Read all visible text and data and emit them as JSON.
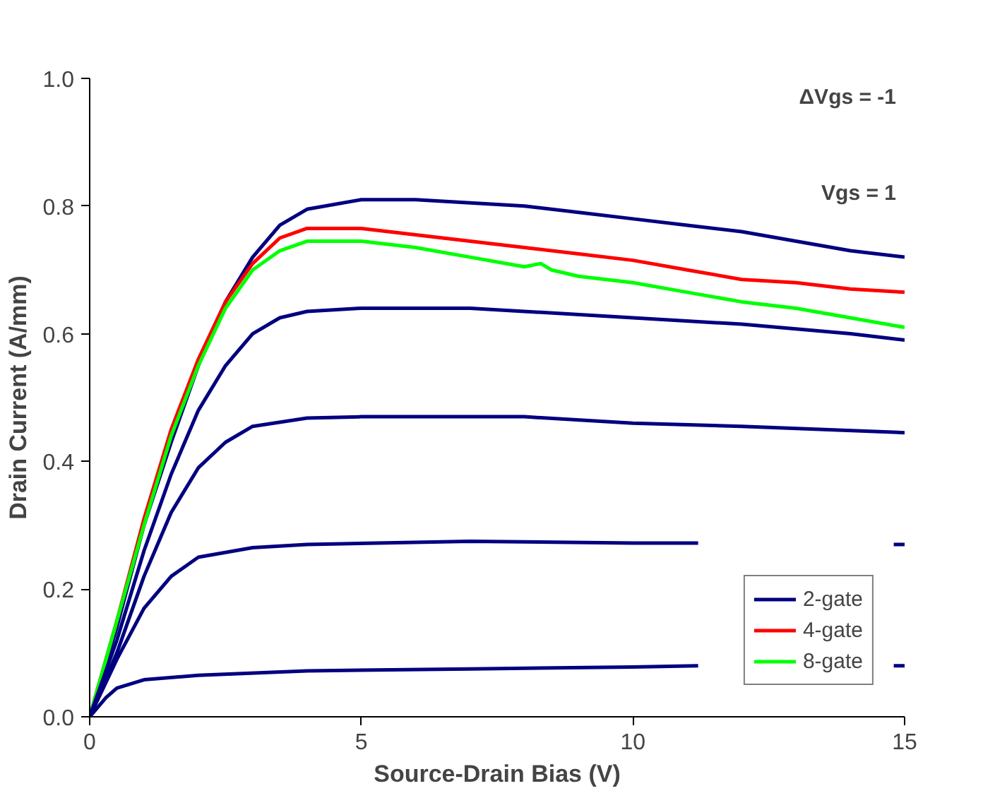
{
  "chart_data": {
    "type": "line",
    "xlabel": "Source-Drain Bias (V)",
    "ylabel": "Drain Current (A/mm)",
    "xlim": [
      0,
      15
    ],
    "ylim": [
      0,
      1.0
    ],
    "xticks": [
      0,
      5,
      10,
      15
    ],
    "yticks": [
      {
        "value": 0,
        "label": "0.0"
      },
      {
        "value": 0.2,
        "label": "0.2"
      },
      {
        "value": 0.4,
        "label": "0.4"
      },
      {
        "value": 0.6,
        "label": "0.6"
      },
      {
        "value": 0.8,
        "label": "0.8"
      },
      {
        "value": 1.0,
        "label": "1.0"
      }
    ],
    "grid": false,
    "legend": "bottom right",
    "marker": "none",
    "line_style": "solid",
    "annotations": [
      "ΔVgs = -1",
      "Vgs = 1"
    ],
    "series": [
      {
        "name": "2-gate",
        "color": "#000080",
        "x": [
          0,
          0.5,
          1,
          1.5,
          2,
          2.5,
          3,
          3.5,
          4,
          5,
          6,
          7,
          8,
          9,
          10,
          11,
          12,
          13,
          14,
          15
        ],
        "values": [
          0,
          0.14,
          0.3,
          0.43,
          0.55,
          0.65,
          0.72,
          0.77,
          0.795,
          0.81,
          0.81,
          0.805,
          0.8,
          0.79,
          0.78,
          0.77,
          0.76,
          0.745,
          0.73,
          0.72
        ]
      },
      {
        "name": "4-gate",
        "color": "#ff0000",
        "x": [
          0,
          0.5,
          1,
          1.5,
          2,
          2.5,
          3,
          3.5,
          4,
          5,
          6,
          7,
          8,
          9,
          10,
          11,
          12,
          13,
          14,
          15
        ],
        "values": [
          0,
          0.15,
          0.31,
          0.45,
          0.56,
          0.65,
          0.71,
          0.75,
          0.765,
          0.765,
          0.755,
          0.745,
          0.735,
          0.725,
          0.715,
          0.7,
          0.685,
          0.68,
          0.67,
          0.665
        ]
      },
      {
        "name": "8-gate",
        "color": "#00ff00",
        "x": [
          0,
          0.5,
          1,
          1.5,
          2,
          2.5,
          3,
          3.5,
          4,
          5,
          6,
          7,
          8,
          8.3,
          8.5,
          9,
          10,
          11,
          12,
          13,
          14,
          15
        ],
        "values": [
          0,
          0.15,
          0.3,
          0.44,
          0.55,
          0.64,
          0.7,
          0.73,
          0.745,
          0.745,
          0.735,
          0.72,
          0.705,
          0.71,
          0.7,
          0.69,
          0.68,
          0.665,
          0.65,
          0.64,
          0.625,
          0.61
        ]
      },
      {
        "color": "#000080",
        "x": [
          0,
          0.5,
          1,
          1.5,
          2,
          2.5,
          3,
          3.5,
          4,
          5,
          7,
          8,
          10,
          12,
          14,
          15
        ],
        "values": [
          0,
          0.12,
          0.26,
          0.38,
          0.48,
          0.55,
          0.6,
          0.625,
          0.635,
          0.64,
          0.64,
          0.635,
          0.625,
          0.615,
          0.6,
          0.59
        ]
      },
      {
        "color": "#000080",
        "x": [
          0,
          0.5,
          1,
          1.5,
          2,
          2.5,
          3,
          4,
          5,
          8,
          10,
          12,
          15
        ],
        "values": [
          0,
          0.1,
          0.22,
          0.32,
          0.39,
          0.43,
          0.455,
          0.468,
          0.47,
          0.47,
          0.46,
          0.455,
          0.445
        ]
      },
      {
        "color": "#000080",
        "x": [
          0,
          0.5,
          1,
          1.5,
          2,
          3,
          4,
          7,
          10,
          11.2,
          11.5,
          14.8,
          15
        ],
        "values": [
          0,
          0.09,
          0.17,
          0.22,
          0.25,
          0.265,
          0.27,
          0.275,
          0.272,
          0.272,
          null,
          0.27,
          0.27
        ]
      },
      {
        "color": "#000080",
        "x": [
          0,
          0.3,
          0.5,
          1,
          2,
          4,
          7,
          10,
          11.2,
          11.5,
          14.8,
          15
        ],
        "values": [
          0,
          0.03,
          0.045,
          0.058,
          0.065,
          0.072,
          0.075,
          0.078,
          0.08,
          null,
          0.08,
          0.08
        ]
      }
    ]
  }
}
